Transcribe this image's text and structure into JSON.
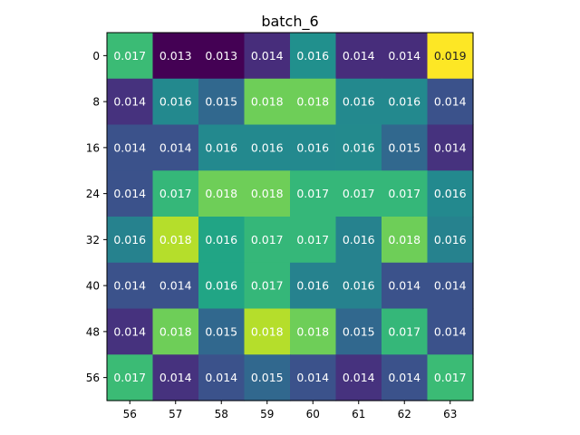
{
  "chart_data": {
    "type": "heatmap",
    "title": "batch_6",
    "xlabel": "",
    "ylabel": "",
    "x_tick_labels": [
      "56",
      "57",
      "58",
      "59",
      "60",
      "61",
      "62",
      "63"
    ],
    "y_tick_labels": [
      "0",
      "8",
      "16",
      "24",
      "32",
      "40",
      "48",
      "56"
    ],
    "colormap": "viridis",
    "color_range": [
      0.013,
      0.019
    ],
    "values": [
      [
        0.017,
        0.013,
        0.013,
        0.014,
        0.016,
        0.014,
        0.014,
        0.019
      ],
      [
        0.014,
        0.016,
        0.015,
        0.018,
        0.018,
        0.016,
        0.016,
        0.014
      ],
      [
        0.014,
        0.014,
        0.016,
        0.016,
        0.016,
        0.016,
        0.015,
        0.014
      ],
      [
        0.014,
        0.017,
        0.018,
        0.018,
        0.017,
        0.017,
        0.017,
        0.016
      ],
      [
        0.016,
        0.018,
        0.016,
        0.017,
        0.017,
        0.016,
        0.018,
        0.016
      ],
      [
        0.014,
        0.014,
        0.016,
        0.017,
        0.016,
        0.016,
        0.014,
        0.014
      ],
      [
        0.014,
        0.018,
        0.015,
        0.018,
        0.018,
        0.015,
        0.017,
        0.014
      ],
      [
        0.017,
        0.014,
        0.014,
        0.015,
        0.014,
        0.014,
        0.014,
        0.017
      ]
    ],
    "cell_labels": [
      [
        "0.017",
        "0.013",
        "0.013",
        "0.014",
        "0.016",
        "0.014",
        "0.014",
        "0.019"
      ],
      [
        "0.014",
        "0.016",
        "0.015",
        "0.018",
        "0.018",
        "0.016",
        "0.016",
        "0.014"
      ],
      [
        "0.014",
        "0.014",
        "0.016",
        "0.016",
        "0.016",
        "0.016",
        "0.015",
        "0.014"
      ],
      [
        "0.014",
        "0.017",
        "0.018",
        "0.018",
        "0.017",
        "0.017",
        "0.017",
        "0.016"
      ],
      [
        "0.016",
        "0.018",
        "0.016",
        "0.017",
        "0.017",
        "0.016",
        "0.018",
        "0.016"
      ],
      [
        "0.014",
        "0.014",
        "0.016",
        "0.017",
        "0.016",
        "0.016",
        "0.014",
        "0.014"
      ],
      [
        "0.014",
        "0.018",
        "0.015",
        "0.018",
        "0.018",
        "0.015",
        "0.017",
        "0.014"
      ],
      [
        "0.017",
        "0.014",
        "0.014",
        "0.015",
        "0.014",
        "0.014",
        "0.014",
        "0.017"
      ]
    ],
    "cell_colors": [
      [
        "#3bbb75",
        "#440154",
        "#440154",
        "#472d7b",
        "#21908d",
        "#472d7b",
        "#472d7b",
        "#fde725"
      ],
      [
        "#46327e",
        "#23898e",
        "#31688e",
        "#6ece58",
        "#6ece58",
        "#23898e",
        "#23898e",
        "#3b528b"
      ],
      [
        "#3b528b",
        "#3b528b",
        "#23898e",
        "#23898e",
        "#23898e",
        "#238a8d",
        "#31688e",
        "#46327e"
      ],
      [
        "#3b528b",
        "#35b779",
        "#6ece58",
        "#6ece58",
        "#35b779",
        "#35b779",
        "#35b779",
        "#23898e"
      ],
      [
        "#26828e",
        "#b5de2b",
        "#21a585",
        "#35b779",
        "#35b779",
        "#26828e",
        "#6ece58",
        "#26828e"
      ],
      [
        "#3b528b",
        "#3b528b",
        "#21a585",
        "#35b779",
        "#26828e",
        "#26828e",
        "#3b528b",
        "#3b528b"
      ],
      [
        "#46327e",
        "#6ece58",
        "#31688e",
        "#b5de2b",
        "#6ece58",
        "#31688e",
        "#35b779",
        "#3b528b"
      ],
      [
        "#3bbb75",
        "#46327e",
        "#3b528b",
        "#31688e",
        "#3b528b",
        "#46327e",
        "#3b528b",
        "#3bbb75"
      ]
    ],
    "grid": false,
    "legend": "none"
  }
}
